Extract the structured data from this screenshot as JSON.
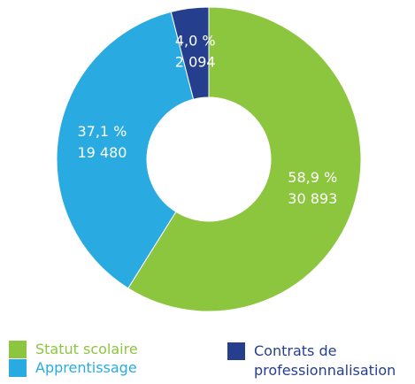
{
  "chart_data": {
    "type": "donut",
    "categories": [
      "Statut scolaire",
      "Apprentissage",
      "Contrats de professionnalisation"
    ],
    "values": [
      58.9,
      37.1,
      4.0
    ],
    "value_labels": [
      "58,9 %",
      "37,1 %",
      "4,0 %"
    ],
    "counts": [
      30893,
      19480,
      2094
    ],
    "count_labels": [
      "30 893",
      "19 480",
      "2 094"
    ],
    "colors": [
      "#8cc63f",
      "#29abe2",
      "#253f8e"
    ]
  }
}
